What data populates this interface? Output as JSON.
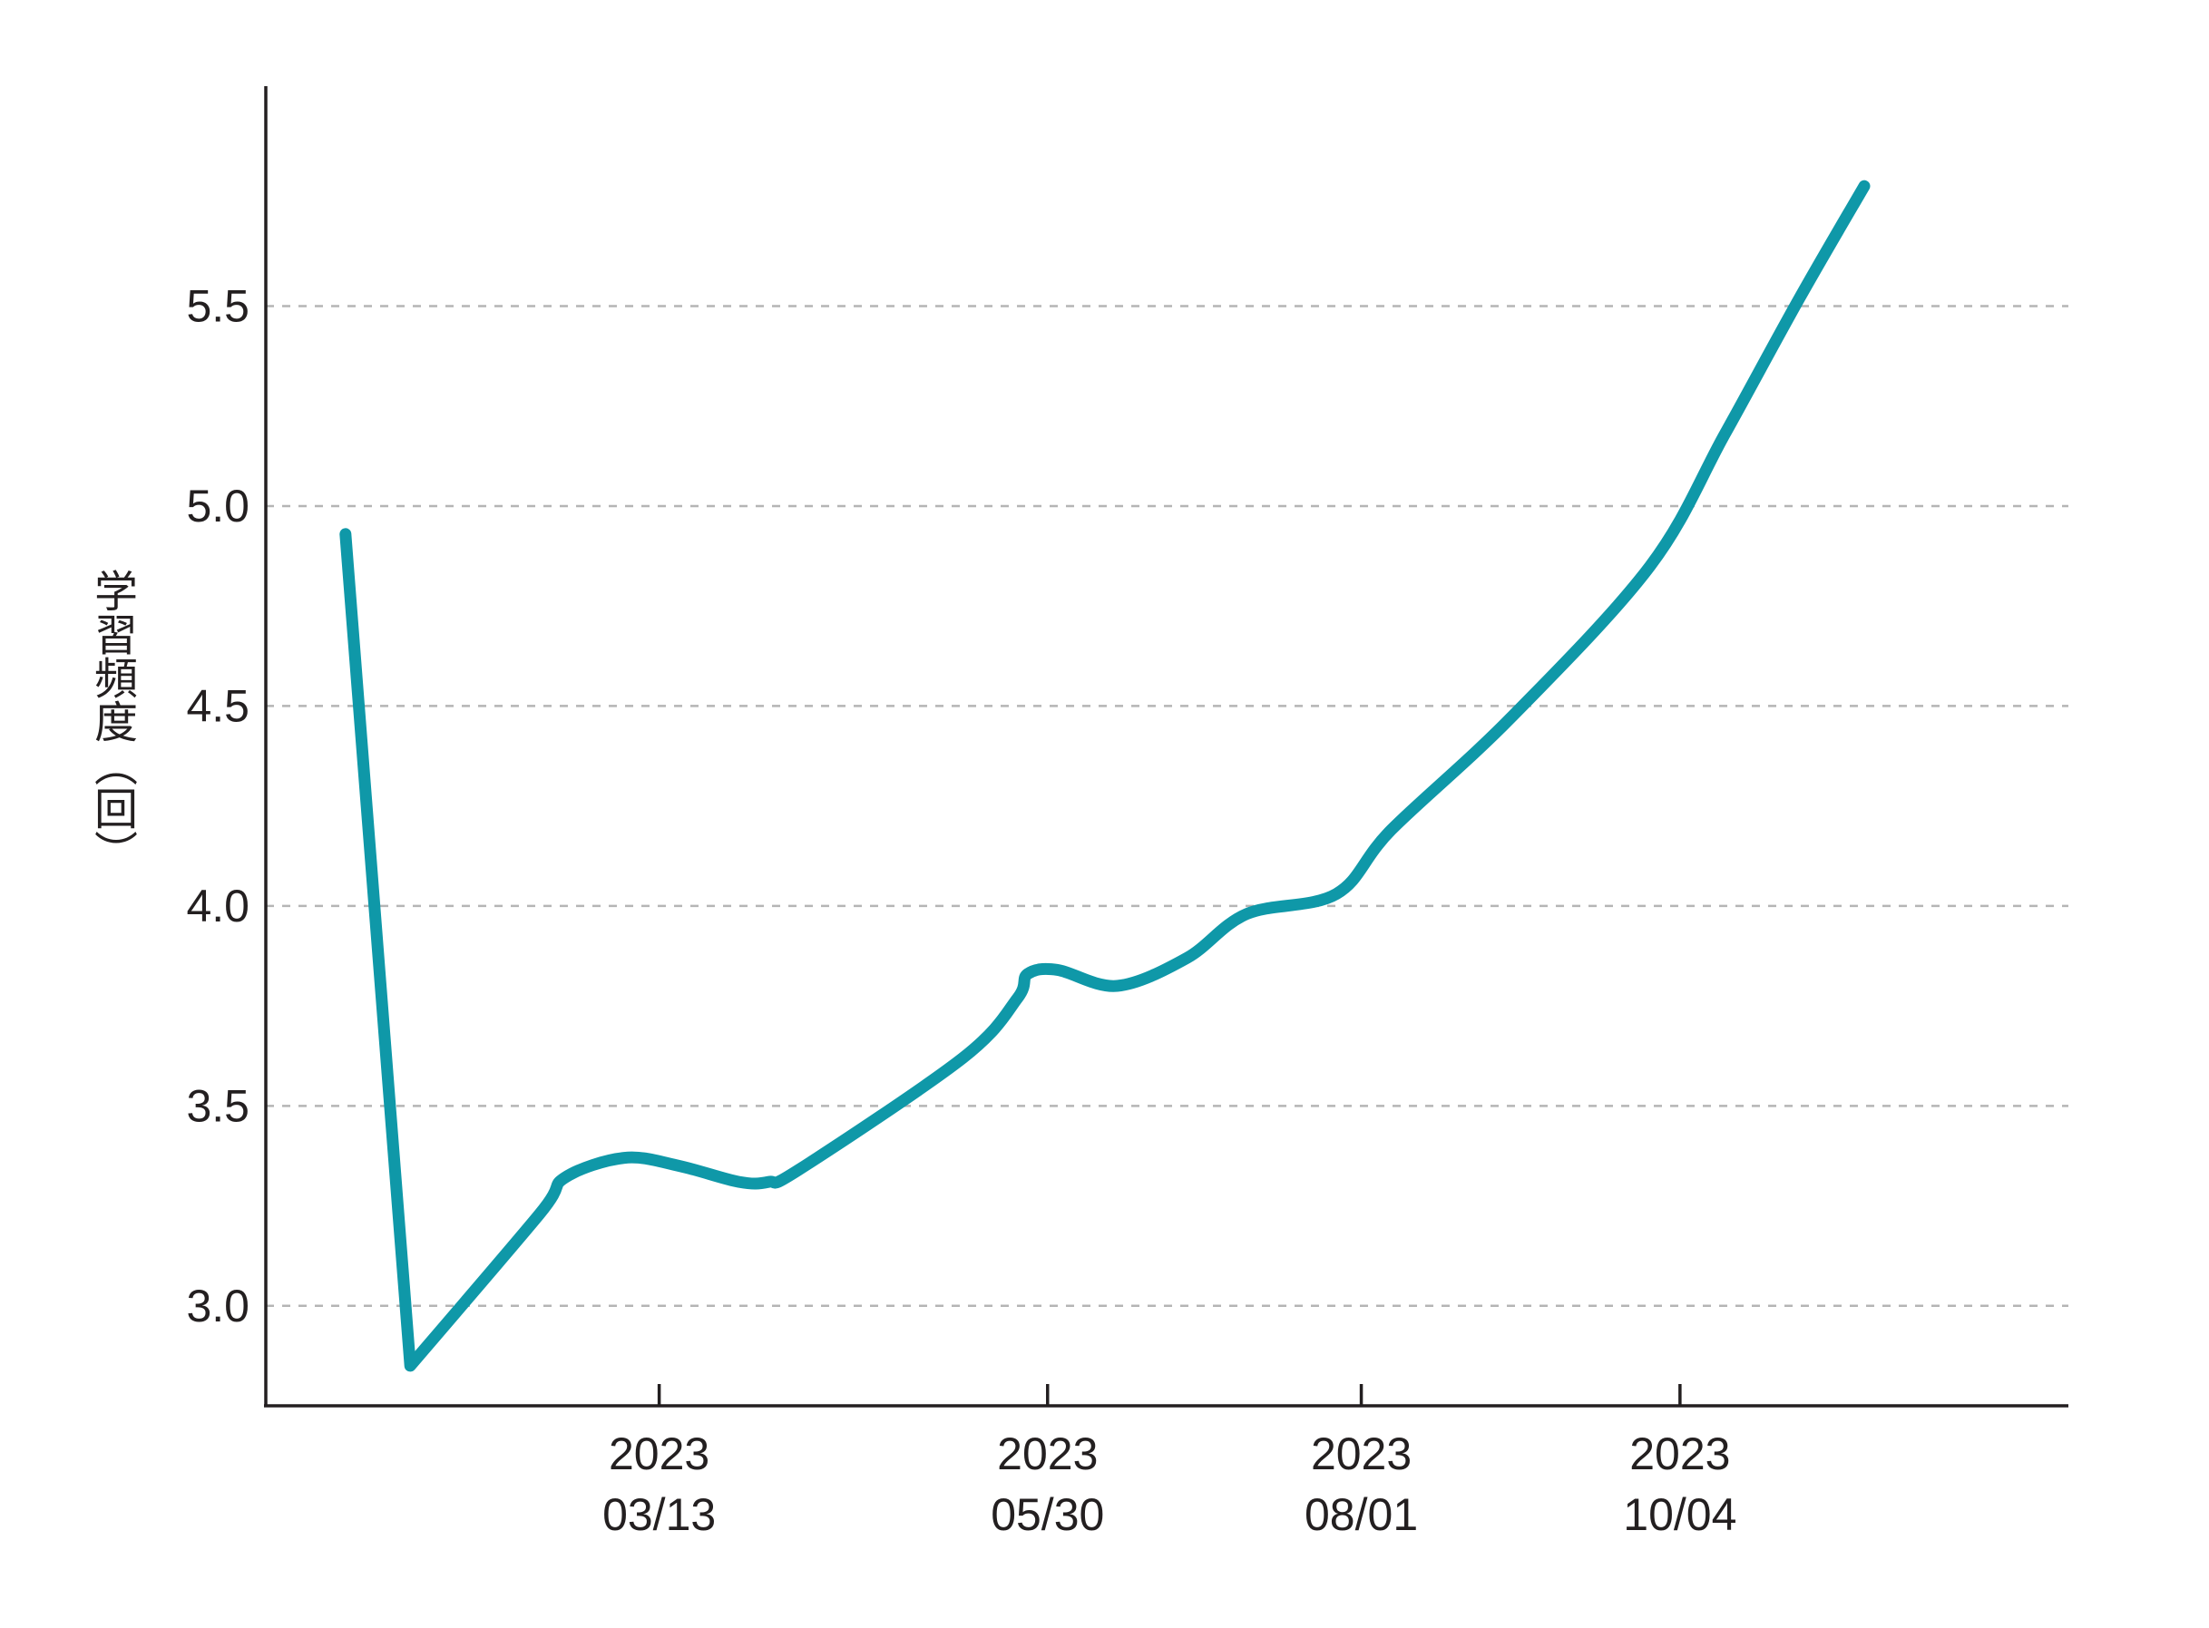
{
  "chart_data": {
    "type": "line",
    "title": "",
    "xlabel": "",
    "ylabel": "学習頻度（回）",
    "ylim": [
      2.75,
      6.05
    ],
    "yticks": [
      3.0,
      3.5,
      4.0,
      4.5,
      5.0,
      5.5
    ],
    "ytick_labels": [
      "3.0",
      "3.5",
      "4.0",
      "4.5",
      "5.0",
      "5.5"
    ],
    "xlim": [
      "2022-12-24",
      "2023-12-21"
    ],
    "xticks": [
      {
        "date": "2023-03-13",
        "year": "2023",
        "day": "03/13"
      },
      {
        "date": "2023-05-30",
        "year": "2023",
        "day": "05/30"
      },
      {
        "date": "2023-08-01",
        "year": "2023",
        "day": "08/01"
      },
      {
        "date": "2023-10-04",
        "year": "2023",
        "day": "10/04"
      }
    ],
    "grid": "horizontal dashed",
    "series": [
      {
        "color": "#0f98a8",
        "points": [
          {
            "x": "2023-01-09",
            "y": 4.93
          },
          {
            "x": "2023-01-22",
            "y": 2.85
          },
          {
            "x": "2023-02-17",
            "y": 3.23
          },
          {
            "x": "2023-02-22",
            "y": 3.32
          },
          {
            "x": "2023-03-06",
            "y": 3.37
          },
          {
            "x": "2023-03-17",
            "y": 3.35
          },
          {
            "x": "2023-03-29",
            "y": 3.31
          },
          {
            "x": "2023-04-04",
            "y": 3.31
          },
          {
            "x": "2023-04-10",
            "y": 3.34
          },
          {
            "x": "2023-05-13",
            "y": 3.62
          },
          {
            "x": "2023-05-24",
            "y": 3.77
          },
          {
            "x": "2023-05-26",
            "y": 3.83
          },
          {
            "x": "2023-06-01",
            "y": 3.84
          },
          {
            "x": "2023-06-13",
            "y": 3.8
          },
          {
            "x": "2023-06-27",
            "y": 3.87
          },
          {
            "x": "2023-07-09",
            "y": 3.98
          },
          {
            "x": "2023-07-27",
            "y": 4.03
          },
          {
            "x": "2023-08-07",
            "y": 4.19
          },
          {
            "x": "2023-08-31",
            "y": 4.47
          },
          {
            "x": "2023-09-28",
            "y": 4.85
          },
          {
            "x": "2023-10-13",
            "y": 5.18
          },
          {
            "x": "2023-10-28",
            "y": 5.52
          },
          {
            "x": "2023-11-10",
            "y": 5.8
          }
        ]
      }
    ]
  }
}
